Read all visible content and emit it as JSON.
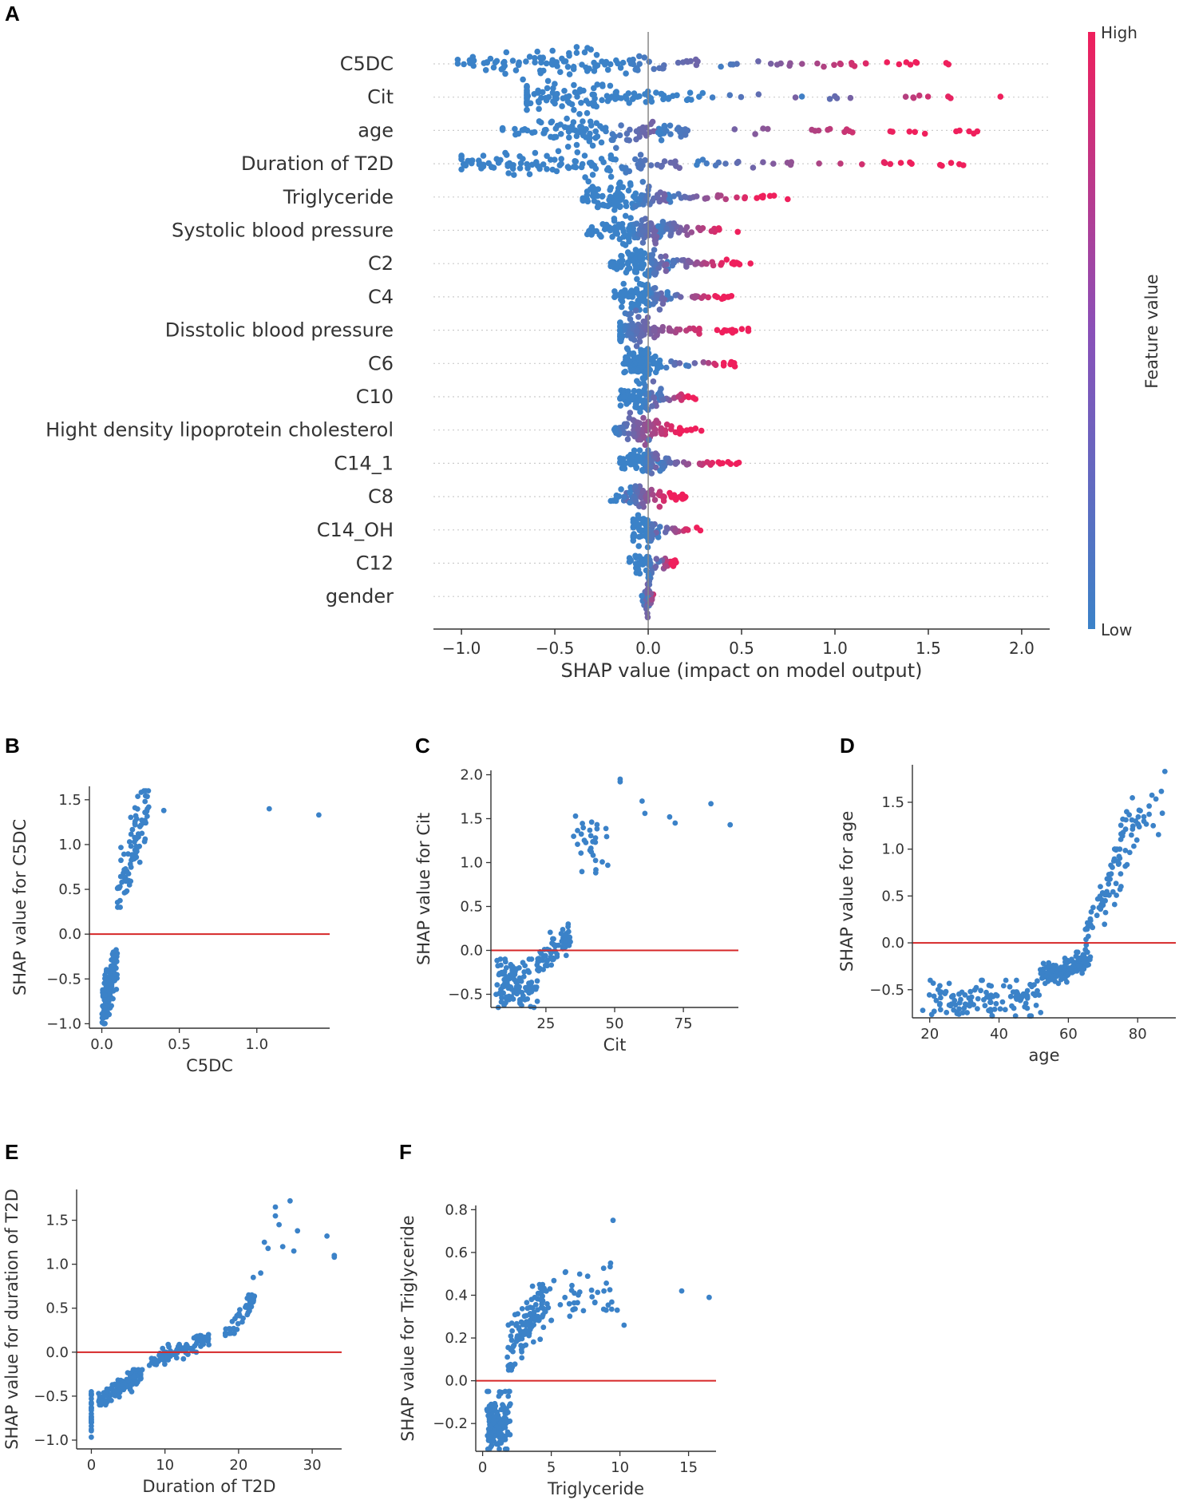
{
  "chart_data": [
    {
      "panel": "A",
      "type": "scatter",
      "subtype": "shap-beeswarm",
      "xlabel": "SHAP value (impact on model output)",
      "xlim": [
        -1.15,
        2.15
      ],
      "xticks": [
        -1.0,
        -0.5,
        0.0,
        0.5,
        1.0,
        1.5,
        2.0
      ],
      "xtick_labels": [
        "−1.0",
        "−0.5",
        "0.0",
        "0.5",
        "1.0",
        "1.5",
        "2.0"
      ],
      "colorbar": {
        "title": "Feature value",
        "high_label": "High",
        "low_label": "Low",
        "low_color": "#3b82c8",
        "high_color": "#ef1f5c"
      },
      "features": [
        {
          "name": "C5DC",
          "min": -1.02,
          "max": 1.62,
          "center": -0.45,
          "width": 0.35,
          "high_start": 0.35
        },
        {
          "name": "Cit",
          "min": -0.65,
          "max": 2.0,
          "center": -0.45,
          "width": 0.3,
          "high_start": 0.8
        },
        {
          "name": "age",
          "min": -0.78,
          "max": 1.85,
          "center": -0.25,
          "width": 0.3,
          "high_start": 0.05
        },
        {
          "name": "Duration of T2D",
          "min": -1.0,
          "max": 1.75,
          "center": -0.5,
          "width": 0.4,
          "high_start": 0.25
        },
        {
          "name": "Triglyceride",
          "min": -0.35,
          "max": 0.75,
          "center": -0.15,
          "width": 0.15,
          "high_start": 0.1
        },
        {
          "name": "Systolic blood pressure",
          "min": -0.35,
          "max": 0.55,
          "center": -0.05,
          "width": 0.12,
          "high_start": 0.05
        },
        {
          "name": "C2",
          "min": -0.2,
          "max": 0.55,
          "center": -0.02,
          "width": 0.1,
          "high_start": 0.1
        },
        {
          "name": "C4",
          "min": -0.18,
          "max": 0.47,
          "center": -0.03,
          "width": 0.08,
          "high_start": 0.1
        },
        {
          "name": "Disstolic blood pressure",
          "min": -0.15,
          "max": 0.55,
          "center": -0.08,
          "width": 0.07,
          "high_start": -0.15
        },
        {
          "name": "C6",
          "min": -0.15,
          "max": 0.47,
          "center": -0.05,
          "width": 0.06,
          "high_start": 0.2
        },
        {
          "name": "C10",
          "min": -0.15,
          "max": 0.27,
          "center": -0.05,
          "width": 0.07,
          "high_start": 0.05
        },
        {
          "name": "Hight density lipoprotein cholesterol",
          "min": -0.18,
          "max": 0.3,
          "center": -0.05,
          "width": 0.08,
          "high_start": -0.18
        },
        {
          "name": "C14_1",
          "min": -0.15,
          "max": 0.5,
          "center": -0.03,
          "width": 0.07,
          "high_start": 0.05
        },
        {
          "name": "C8",
          "min": -0.2,
          "max": 0.2,
          "center": -0.05,
          "width": 0.08,
          "high_start": -0.1
        },
        {
          "name": "C14_OH",
          "min": -0.08,
          "max": 0.3,
          "center": -0.02,
          "width": 0.04,
          "high_start": 0.05
        },
        {
          "name": "C12",
          "min": -0.1,
          "max": 0.15,
          "center": -0.02,
          "width": 0.04,
          "high_start": 0.05
        },
        {
          "name": "gender",
          "min": -0.04,
          "max": 0.03,
          "center": 0.0,
          "width": 0.01,
          "high_start": 0.0
        }
      ]
    },
    {
      "panel": "B",
      "type": "scatter",
      "xlabel": "C5DC",
      "ylabel": "SHAP value for C5DC",
      "xlim": [
        -0.08,
        1.47
      ],
      "ylim": [
        -1.05,
        1.65
      ],
      "xticks": [
        0.0,
        0.5,
        1.0
      ],
      "xtick_labels": [
        "0.0",
        "0.5",
        "1.0"
      ],
      "yticks": [
        -1.0,
        -0.5,
        0.0,
        0.5,
        1.0,
        1.5
      ],
      "ytick_labels": [
        "−1.0",
        "−0.5",
        "0.0",
        "0.5",
        "1.0",
        "1.5"
      ],
      "clusters": [
        {
          "x": [
            0.0,
            0.1
          ],
          "y": [
            -1.0,
            -0.15
          ],
          "n": 120,
          "trend": 0.6
        },
        {
          "x": [
            0.1,
            0.3
          ],
          "y": [
            0.3,
            1.6
          ],
          "n": 90,
          "trend": 0.7
        }
      ],
      "points": [
        {
          "x": 0.4,
          "y": 1.38
        },
        {
          "x": 1.08,
          "y": 1.4
        },
        {
          "x": 1.4,
          "y": 1.33
        }
      ]
    },
    {
      "panel": "C",
      "type": "scatter",
      "xlabel": "Cit",
      "ylabel": "SHAP value for Cit",
      "xlim": [
        5,
        95
      ],
      "ylim": [
        -0.65,
        2.05
      ],
      "xticks": [
        25,
        50,
        75
      ],
      "xtick_labels": [
        "25",
        "50",
        "75"
      ],
      "yticks": [
        -0.5,
        0.0,
        0.5,
        1.0,
        1.5,
        2.0
      ],
      "ytick_labels": [
        "−0.5",
        "0.0",
        "0.5",
        "1.0",
        "1.5",
        "2.0"
      ],
      "clusters": [
        {
          "x": [
            7,
            22
          ],
          "y": [
            -0.65,
            -0.1
          ],
          "n": 110,
          "trend": 0.0
        },
        {
          "x": [
            22,
            34
          ],
          "y": [
            -0.3,
            0.3
          ],
          "n": 70,
          "trend": 0.6
        },
        {
          "x": [
            35,
            48
          ],
          "y": [
            0.8,
            1.6
          ],
          "n": 30,
          "trend": 0.2
        }
      ],
      "points": [
        {
          "x": 52,
          "y": 1.95
        },
        {
          "x": 52,
          "y": 1.92
        },
        {
          "x": 60,
          "y": 1.7
        },
        {
          "x": 61,
          "y": 1.56
        },
        {
          "x": 70,
          "y": 1.52
        },
        {
          "x": 72,
          "y": 1.45
        },
        {
          "x": 85,
          "y": 1.67
        },
        {
          "x": 92,
          "y": 1.43
        }
      ]
    },
    {
      "panel": "D",
      "type": "scatter",
      "xlabel": "age",
      "ylabel": "SHAP value for age",
      "xlim": [
        15,
        91
      ],
      "ylim": [
        -0.8,
        1.9
      ],
      "xticks": [
        20,
        40,
        60,
        80
      ],
      "xtick_labels": [
        "20",
        "40",
        "60",
        "80"
      ],
      "yticks": [
        -0.5,
        0.0,
        0.5,
        1.0,
        1.5
      ],
      "ytick_labels": [
        "−0.5",
        "0.0",
        "0.5",
        "1.0",
        "1.5"
      ],
      "clusters": [
        {
          "x": [
            20,
            52
          ],
          "y": [
            -0.78,
            -0.4
          ],
          "n": 120,
          "trend": 0.0
        },
        {
          "x": [
            52,
            66
          ],
          "y": [
            -0.45,
            -0.1
          ],
          "n": 140,
          "trend": 0.5
        },
        {
          "x": [
            65,
            75
          ],
          "y": [
            -0.1,
            1.0
          ],
          "n": 60,
          "trend": 0.8
        },
        {
          "x": [
            74,
            88
          ],
          "y": [
            0.8,
            1.85
          ],
          "n": 40,
          "trend": 0.6
        }
      ],
      "points": [
        {
          "x": 18,
          "y": -0.72
        },
        {
          "x": 21,
          "y": -0.43
        }
      ]
    },
    {
      "panel": "E",
      "type": "scatter",
      "xlabel": "Duration of T2D",
      "ylabel": "SHAP value for duration of T2D",
      "xlim": [
        -2,
        34
      ],
      "ylim": [
        -1.1,
        1.85
      ],
      "xticks": [
        0,
        10,
        20,
        30
      ],
      "xtick_labels": [
        "0",
        "10",
        "20",
        "30"
      ],
      "yticks": [
        -1.0,
        -0.5,
        0.0,
        0.5,
        1.0,
        1.5
      ],
      "ytick_labels": [
        "−1.0",
        "−0.5",
        "0.0",
        "0.5",
        "1.0",
        "1.5"
      ],
      "clusters": [
        {
          "x": [
            0,
            0
          ],
          "y": [
            -1.0,
            -0.45
          ],
          "n": 30,
          "trend": 0.0
        },
        {
          "x": [
            1,
            7
          ],
          "y": [
            -0.6,
            -0.2
          ],
          "n": 140,
          "trend": 0.8
        },
        {
          "x": [
            8,
            16
          ],
          "y": [
            -0.15,
            0.2
          ],
          "n": 90,
          "trend": 0.8
        },
        {
          "x": [
            18,
            22
          ],
          "y": [
            0.15,
            0.65
          ],
          "n": 50,
          "trend": 0.8
        }
      ],
      "points": [
        {
          "x": 22,
          "y": 0.85
        },
        {
          "x": 23,
          "y": 0.9
        },
        {
          "x": 23.5,
          "y": 1.25
        },
        {
          "x": 24,
          "y": 1.18
        },
        {
          "x": 25,
          "y": 1.65
        },
        {
          "x": 25,
          "y": 1.55
        },
        {
          "x": 25.5,
          "y": 1.45
        },
        {
          "x": 26,
          "y": 1.2
        },
        {
          "x": 27,
          "y": 1.72
        },
        {
          "x": 27.5,
          "y": 1.15
        },
        {
          "x": 28,
          "y": 1.38
        },
        {
          "x": 32,
          "y": 1.32
        },
        {
          "x": 33,
          "y": 1.1
        },
        {
          "x": 33,
          "y": 1.08
        }
      ]
    },
    {
      "panel": "F",
      "type": "scatter",
      "xlabel": "Triglyceride",
      "ylabel": "SHAP value for Triglyceride",
      "xlim": [
        -0.5,
        17
      ],
      "ylim": [
        -0.33,
        0.82
      ],
      "xticks": [
        0,
        5,
        10,
        15
      ],
      "xtick_labels": [
        "0",
        "5",
        "10",
        "15"
      ],
      "yticks": [
        -0.2,
        0.0,
        0.2,
        0.4,
        0.6,
        0.8
      ],
      "ytick_labels": [
        "−0.2",
        "0.0",
        "0.2",
        "0.4",
        "0.6",
        "0.8"
      ],
      "clusters": [
        {
          "x": [
            0.3,
            2.0
          ],
          "y": [
            -0.32,
            -0.05
          ],
          "n": 130,
          "trend": 0.1
        },
        {
          "x": [
            1.8,
            4.5
          ],
          "y": [
            0.05,
            0.45
          ],
          "n": 110,
          "trend": 0.6
        },
        {
          "x": [
            4.0,
            9.5
          ],
          "y": [
            0.25,
            0.55
          ],
          "n": 45,
          "trend": 0.3
        }
      ],
      "points": [
        {
          "x": 9.5,
          "y": 0.75
        },
        {
          "x": 9.0,
          "y": 0.33
        },
        {
          "x": 9.8,
          "y": 0.33
        },
        {
          "x": 10.3,
          "y": 0.26
        },
        {
          "x": 14.5,
          "y": 0.42
        },
        {
          "x": 16.5,
          "y": 0.39
        }
      ]
    }
  ]
}
